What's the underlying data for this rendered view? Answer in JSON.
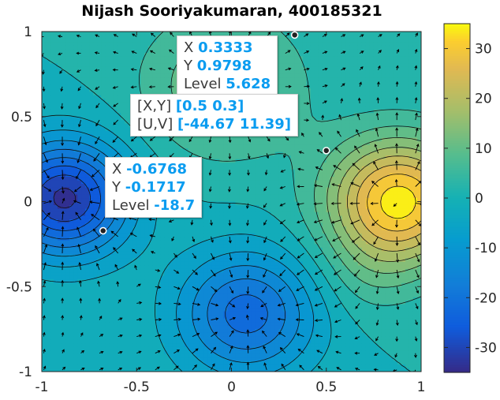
{
  "chart_data": {
    "type": "heatmap",
    "subtype": "filled contour with quiver overlay",
    "title": "Nijash Sooriyakumaran, 400185321",
    "xlim": [
      -1,
      1
    ],
    "ylim": [
      -1,
      1
    ],
    "x_ticks": [
      "-1",
      "-0.5",
      "0",
      "0.5",
      "1"
    ],
    "y_ticks": [
      "1",
      "0.5",
      "0",
      "-0.5",
      "-1"
    ],
    "colorbar": {
      "range": [
        -35,
        35
      ],
      "ticks": [
        "30",
        "20",
        "10",
        "0",
        "-10",
        "-20",
        "-30"
      ],
      "colormap": "parula"
    },
    "field_extrema": [
      {
        "x": 0.88,
        "y": 0.0,
        "level": 34
      },
      {
        "x": -0.88,
        "y": 0.02,
        "level": -33
      },
      {
        "x": 0.08,
        "y": -0.66,
        "level": -22
      },
      {
        "x": -0.05,
        "y": 0.68,
        "level": 12
      },
      {
        "x": 0.72,
        "y": -0.45,
        "level": 4
      }
    ],
    "datatips": [
      {
        "marker": {
          "x": 0.3333,
          "y": 0.9798
        },
        "rows": [
          {
            "label": "X",
            "value": "0.3333"
          },
          {
            "label": "Y",
            "value": "0.9798"
          },
          {
            "label": "Level",
            "value": "5.628"
          }
        ]
      },
      {
        "marker": {
          "x": 0.5,
          "y": 0.3
        },
        "rows": [
          {
            "label": "[X,Y]",
            "value": "[0.5 0.3]"
          },
          {
            "label": "[U,V]",
            "value": "[-44.67 11.39]"
          }
        ]
      },
      {
        "marker": {
          "x": -0.6768,
          "y": -0.1717
        },
        "rows": [
          {
            "label": "X",
            "value": "-0.6768"
          },
          {
            "label": "Y",
            "value": "-0.1717"
          },
          {
            "label": "Level",
            "value": "-18.7"
          }
        ]
      }
    ]
  }
}
